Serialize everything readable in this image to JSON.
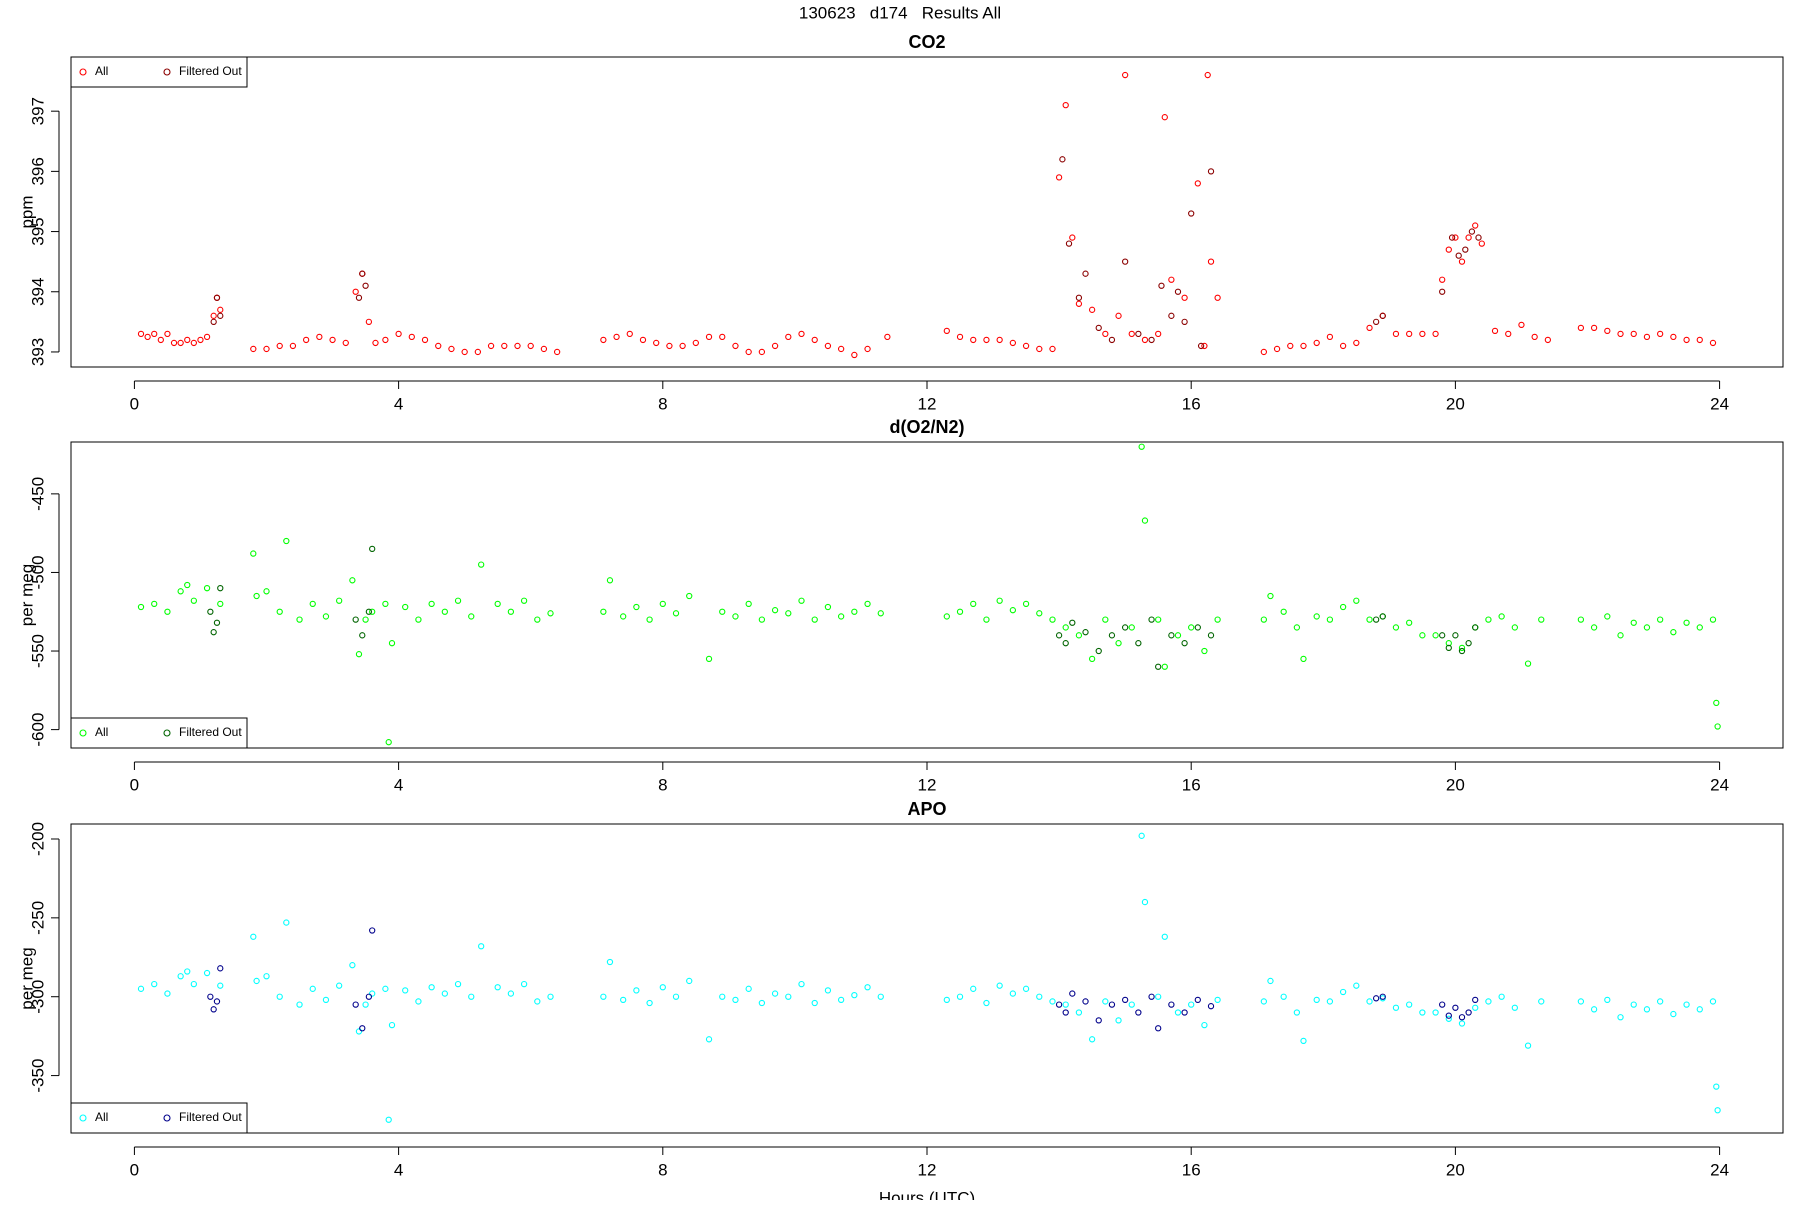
{
  "title": "130623   d174   Results All",
  "chart_data": [
    {
      "type": "scatter",
      "title": "CO2",
      "y_label": "ppm",
      "xlim": [
        -0.96,
        24.96
      ],
      "xticks": [
        0,
        4,
        8,
        12,
        16,
        20,
        24
      ],
      "ylim": [
        392.75,
        397.9
      ],
      "yticks": [
        393,
        394,
        395,
        396,
        397
      ],
      "legend": "topleft",
      "series": [
        {
          "name": "All",
          "color": "#ff0000",
          "x": [
            0.1,
            0.2,
            0.3,
            0.4,
            0.5,
            0.6,
            0.7,
            0.8,
            0.9,
            1.0,
            1.1,
            1.2,
            1.25,
            1.3,
            1.8,
            2.0,
            2.2,
            2.4,
            2.6,
            2.8,
            3.0,
            3.2,
            3.35,
            3.45,
            3.55,
            3.65,
            3.8,
            4.0,
            4.2,
            4.4,
            4.6,
            4.8,
            5.0,
            5.2,
            5.4,
            5.6,
            5.8,
            6.0,
            6.2,
            6.4,
            7.1,
            7.3,
            7.5,
            7.7,
            7.9,
            8.1,
            8.3,
            8.5,
            8.7,
            8.9,
            9.1,
            9.3,
            9.5,
            9.7,
            9.9,
            10.1,
            10.3,
            10.5,
            10.7,
            10.9,
            11.1,
            11.4,
            12.3,
            12.5,
            12.7,
            12.9,
            13.1,
            13.3,
            13.5,
            13.7,
            13.9,
            14.0,
            14.1,
            14.2,
            14.3,
            14.5,
            14.7,
            14.9,
            15.0,
            15.1,
            15.3,
            15.5,
            15.6,
            15.7,
            15.9,
            16.1,
            16.2,
            16.25,
            16.3,
            16.4,
            17.1,
            17.3,
            17.5,
            17.7,
            17.9,
            18.1,
            18.3,
            18.5,
            18.7,
            18.9,
            19.1,
            19.3,
            19.5,
            19.7,
            19.8,
            19.9,
            20.0,
            20.1,
            20.2,
            20.3,
            20.4,
            20.6,
            20.8,
            21.0,
            21.2,
            21.4,
            21.9,
            22.1,
            22.3,
            22.5,
            22.7,
            22.9,
            23.1,
            23.3,
            23.5,
            23.7,
            23.9
          ],
          "values": [
            393.3,
            393.25,
            393.3,
            393.2,
            393.3,
            393.15,
            393.15,
            393.2,
            393.15,
            393.2,
            393.25,
            393.6,
            393.9,
            393.7,
            393.05,
            393.05,
            393.1,
            393.1,
            393.2,
            393.25,
            393.2,
            393.15,
            394.0,
            394.3,
            393.5,
            393.15,
            393.2,
            393.3,
            393.25,
            393.2,
            393.1,
            393.05,
            393.0,
            393.0,
            393.1,
            393.1,
            393.1,
            393.1,
            393.05,
            393.0,
            393.2,
            393.25,
            393.3,
            393.2,
            393.15,
            393.1,
            393.1,
            393.15,
            393.25,
            393.25,
            393.1,
            393.0,
            393.0,
            393.1,
            393.25,
            393.3,
            393.2,
            393.1,
            393.05,
            392.95,
            393.05,
            393.25,
            393.35,
            393.25,
            393.2,
            393.2,
            393.2,
            393.15,
            393.1,
            393.05,
            393.05,
            395.9,
            397.1,
            394.9,
            393.8,
            393.7,
            393.3,
            393.6,
            397.6,
            393.3,
            393.2,
            393.3,
            396.9,
            394.2,
            393.9,
            395.8,
            393.1,
            397.6,
            394.5,
            393.9,
            393.0,
            393.05,
            393.1,
            393.1,
            393.15,
            393.25,
            393.1,
            393.15,
            393.4,
            393.6,
            393.3,
            393.3,
            393.3,
            393.3,
            394.2,
            394.7,
            394.9,
            394.5,
            394.9,
            395.1,
            394.8,
            393.35,
            393.3,
            393.45,
            393.25,
            393.2,
            393.4,
            393.4,
            393.35,
            393.3,
            393.3,
            393.25,
            393.3,
            393.25,
            393.2,
            393.2,
            393.15
          ]
        },
        {
          "name": "Filtered Out",
          "color": "#8b0000",
          "x": [
            1.2,
            1.25,
            1.3,
            3.4,
            3.45,
            3.5,
            14.05,
            14.15,
            14.3,
            14.4,
            14.6,
            14.8,
            15.0,
            15.2,
            15.4,
            15.55,
            15.7,
            15.8,
            15.9,
            16.0,
            16.15,
            16.3,
            18.8,
            18.9,
            19.8,
            19.95,
            20.05,
            20.15,
            20.25,
            20.35
          ],
          "values": [
            393.5,
            393.9,
            393.6,
            393.9,
            394.3,
            394.1,
            396.2,
            394.8,
            393.9,
            394.3,
            393.4,
            393.2,
            394.5,
            393.3,
            393.2,
            394.1,
            393.6,
            394.0,
            393.5,
            395.3,
            393.1,
            396.0,
            393.5,
            393.6,
            394.0,
            394.9,
            394.6,
            394.7,
            395.0,
            394.9
          ]
        }
      ]
    },
    {
      "type": "scatter",
      "title": "d(O2/N2)",
      "y_label": "per meg",
      "xlim": [
        -0.96,
        24.96
      ],
      "xticks": [
        0,
        4,
        8,
        12,
        16,
        20,
        24
      ],
      "ylim": [
        -611.7,
        -417
      ],
      "yticks": [
        -600,
        -550,
        -500,
        -450
      ],
      "legend": "bottomleft",
      "series": [
        {
          "name": "All",
          "color": "#00ff00",
          "x": [
            0.1,
            0.3,
            0.5,
            0.7,
            0.8,
            0.9,
            1.1,
            1.3,
            1.8,
            1.85,
            2.0,
            2.2,
            2.3,
            2.5,
            2.7,
            2.9,
            3.1,
            3.3,
            3.4,
            3.5,
            3.6,
            3.8,
            3.85,
            3.9,
            4.1,
            4.3,
            4.5,
            4.7,
            4.9,
            5.1,
            5.25,
            5.5,
            5.7,
            5.9,
            6.1,
            6.3,
            7.1,
            7.2,
            7.4,
            7.6,
            7.8,
            8.0,
            8.2,
            8.4,
            8.7,
            8.9,
            9.1,
            9.3,
            9.5,
            9.7,
            9.9,
            10.1,
            10.3,
            10.5,
            10.7,
            10.9,
            11.1,
            11.3,
            12.3,
            12.5,
            12.7,
            12.9,
            13.1,
            13.3,
            13.5,
            13.7,
            13.9,
            14.1,
            14.3,
            14.5,
            14.7,
            14.9,
            15.1,
            15.25,
            15.3,
            15.5,
            15.6,
            15.8,
            16.0,
            16.2,
            16.4,
            17.1,
            17.2,
            17.4,
            17.6,
            17.7,
            17.9,
            18.1,
            18.3,
            18.5,
            18.7,
            18.9,
            19.1,
            19.3,
            19.5,
            19.7,
            19.9,
            20.1,
            20.3,
            20.5,
            20.7,
            20.9,
            21.1,
            21.3,
            21.9,
            22.1,
            22.3,
            22.5,
            22.7,
            22.9,
            23.1,
            23.3,
            23.5,
            23.7,
            23.9,
            23.95,
            23.97
          ],
          "values": [
            -522,
            -520,
            -525,
            -512,
            -508,
            -518,
            -510,
            -520,
            -488,
            -515,
            -512,
            -525,
            -480,
            -530,
            -520,
            -528,
            -518,
            -505,
            -552,
            -530,
            -525,
            -520,
            -608,
            -545,
            -522,
            -530,
            -520,
            -525,
            -518,
            -528,
            -495,
            -520,
            -525,
            -518,
            -530,
            -526,
            -525,
            -505,
            -528,
            -522,
            -530,
            -520,
            -526,
            -515,
            -555,
            -525,
            -528,
            -520,
            -530,
            -524,
            -526,
            -518,
            -530,
            -522,
            -528,
            -525,
            -520,
            -526,
            -528,
            -525,
            -520,
            -530,
            -518,
            -524,
            -520,
            -526,
            -530,
            -535,
            -540,
            -555,
            -530,
            -545,
            -535,
            -420,
            -467,
            -530,
            -560,
            -540,
            -535,
            -550,
            -530,
            -530,
            -515,
            -525,
            -535,
            -555,
            -528,
            -530,
            -522,
            -518,
            -530,
            -528,
            -535,
            -532,
            -540,
            -540,
            -545,
            -548,
            -535,
            -530,
            -528,
            -535,
            -558,
            -530,
            -530,
            -535,
            -528,
            -540,
            -532,
            -535,
            -530,
            -538,
            -532,
            -535,
            -530,
            -583,
            -598
          ]
        },
        {
          "name": "Filtered Out",
          "color": "#006400",
          "x": [
            1.15,
            1.2,
            1.25,
            1.3,
            3.35,
            3.45,
            3.55,
            3.6,
            14.0,
            14.1,
            14.2,
            14.4,
            14.6,
            14.8,
            15.0,
            15.2,
            15.4,
            15.5,
            15.7,
            15.9,
            16.1,
            16.3,
            18.8,
            18.9,
            19.8,
            19.9,
            20.0,
            20.1,
            20.2,
            20.3
          ],
          "values": [
            -525,
            -538,
            -532,
            -510,
            -530,
            -540,
            -525,
            -485,
            -540,
            -545,
            -532,
            -538,
            -550,
            -540,
            -535,
            -545,
            -530,
            -560,
            -540,
            -545,
            -535,
            -540,
            -530,
            -528,
            -540,
            -548,
            -540,
            -550,
            -545,
            -535
          ]
        }
      ]
    },
    {
      "type": "scatter",
      "title": "APO",
      "y_label": "per meg",
      "x_label": "Hours (UTC)",
      "xlim": [
        -0.96,
        24.96
      ],
      "xticks": [
        0,
        4,
        8,
        12,
        16,
        20,
        24
      ],
      "ylim": [
        -386.4,
        -190.5
      ],
      "yticks": [
        -350,
        -300,
        -250,
        -200
      ],
      "legend": "bottomleft",
      "series": [
        {
          "name": "All",
          "color": "#00ffff",
          "x": [
            0.1,
            0.3,
            0.5,
            0.7,
            0.8,
            0.9,
            1.1,
            1.3,
            1.8,
            1.85,
            2.0,
            2.2,
            2.3,
            2.5,
            2.7,
            2.9,
            3.1,
            3.3,
            3.4,
            3.5,
            3.6,
            3.8,
            3.85,
            3.9,
            4.1,
            4.3,
            4.5,
            4.7,
            4.9,
            5.1,
            5.25,
            5.5,
            5.7,
            5.9,
            6.1,
            6.3,
            7.1,
            7.2,
            7.4,
            7.6,
            7.8,
            8.0,
            8.2,
            8.4,
            8.7,
            8.9,
            9.1,
            9.3,
            9.5,
            9.7,
            9.9,
            10.1,
            10.3,
            10.5,
            10.7,
            10.9,
            11.1,
            11.3,
            12.3,
            12.5,
            12.7,
            12.9,
            13.1,
            13.3,
            13.5,
            13.7,
            13.9,
            14.1,
            14.3,
            14.5,
            14.7,
            14.9,
            15.1,
            15.25,
            15.3,
            15.5,
            15.6,
            15.8,
            16.0,
            16.2,
            16.4,
            17.1,
            17.2,
            17.4,
            17.6,
            17.7,
            17.9,
            18.1,
            18.3,
            18.5,
            18.7,
            18.9,
            19.1,
            19.3,
            19.5,
            19.7,
            19.9,
            20.1,
            20.3,
            20.5,
            20.7,
            20.9,
            21.1,
            21.3,
            21.9,
            22.1,
            22.3,
            22.5,
            22.7,
            22.9,
            23.1,
            23.3,
            23.5,
            23.7,
            23.9,
            23.95,
            23.97
          ],
          "values": [
            -295,
            -292,
            -298,
            -287,
            -284,
            -292,
            -285,
            -293,
            -262,
            -290,
            -287,
            -300,
            -253,
            -305,
            -295,
            -302,
            -293,
            -280,
            -322,
            -305,
            -298,
            -295,
            -378,
            -318,
            -296,
            -303,
            -294,
            -298,
            -292,
            -300,
            -268,
            -294,
            -298,
            -292,
            -303,
            -300,
            -300,
            -278,
            -302,
            -296,
            -304,
            -294,
            -300,
            -290,
            -327,
            -300,
            -302,
            -295,
            -304,
            -298,
            -300,
            -292,
            -304,
            -296,
            -302,
            -299,
            -294,
            -300,
            -302,
            -300,
            -295,
            -304,
            -293,
            -298,
            -295,
            -300,
            -303,
            -305,
            -310,
            -327,
            -303,
            -315,
            -305,
            -198,
            -240,
            -300,
            -262,
            -310,
            -305,
            -318,
            -302,
            -303,
            -290,
            -300,
            -310,
            -328,
            -302,
            -303,
            -297,
            -293,
            -303,
            -301,
            -307,
            -305,
            -310,
            -310,
            -314,
            -317,
            -307,
            -303,
            -300,
            -307,
            -331,
            -303,
            -303,
            -308,
            -302,
            -313,
            -305,
            -308,
            -303,
            -311,
            -305,
            -308,
            -303,
            -357,
            -372
          ]
        },
        {
          "name": "Filtered Out",
          "color": "#00008b",
          "x": [
            1.15,
            1.2,
            1.25,
            1.3,
            3.35,
            3.45,
            3.55,
            3.6,
            14.0,
            14.1,
            14.2,
            14.4,
            14.6,
            14.8,
            15.0,
            15.2,
            15.4,
            15.5,
            15.7,
            15.9,
            16.1,
            16.3,
            18.8,
            18.9,
            19.8,
            19.9,
            20.0,
            20.1,
            20.2,
            20.3
          ],
          "values": [
            -300,
            -308,
            -303,
            -282,
            -305,
            -320,
            -300,
            -258,
            -305,
            -310,
            -298,
            -303,
            -315,
            -305,
            -302,
            -310,
            -300,
            -320,
            -305,
            -310,
            -302,
            -306,
            -301,
            -300,
            -305,
            -312,
            -307,
            -313,
            -310,
            -302
          ]
        }
      ]
    }
  ]
}
